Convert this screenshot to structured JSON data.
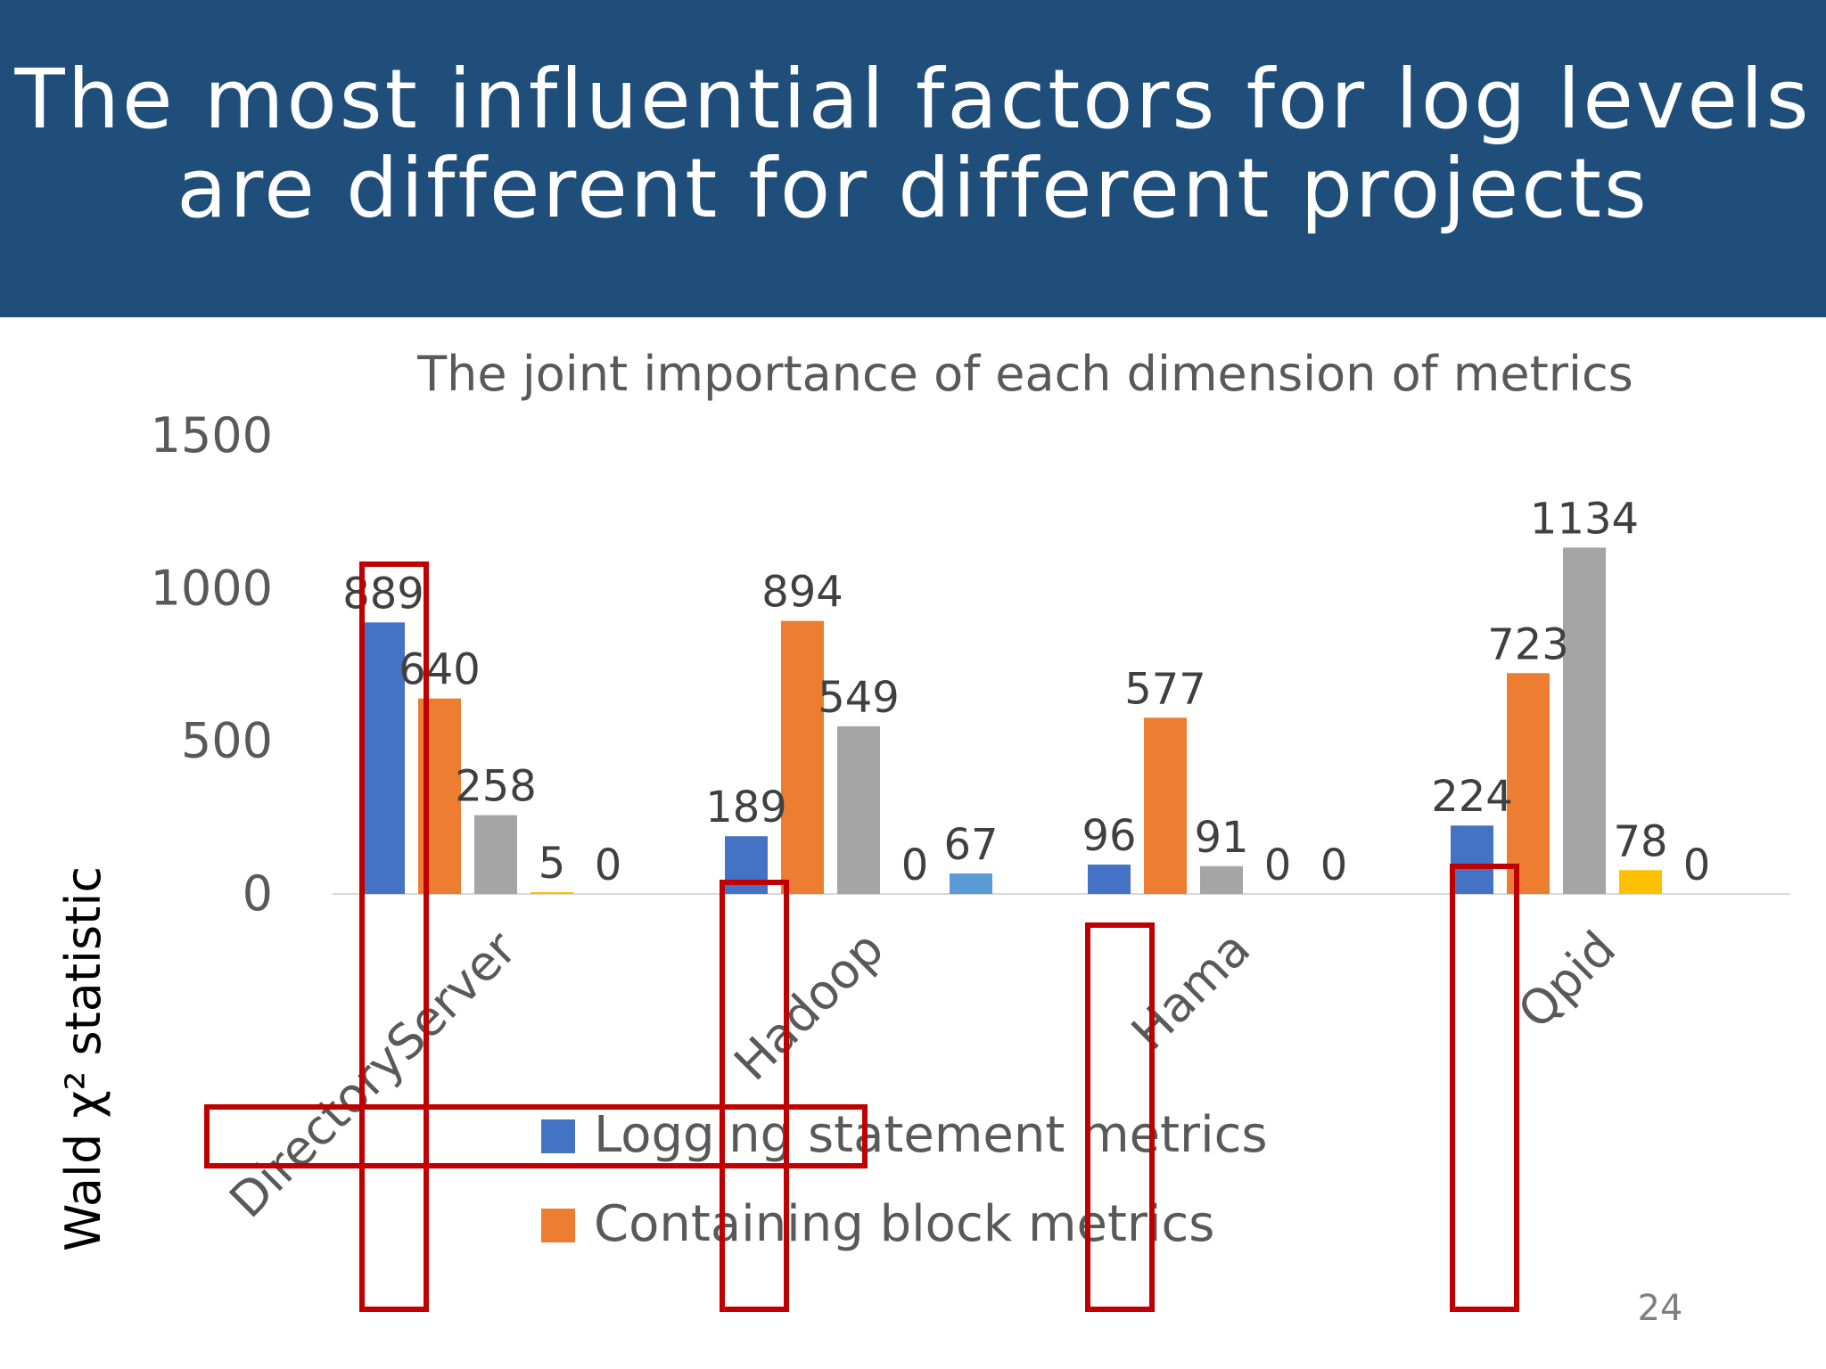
{
  "slide": {
    "title_line1": "The most influential factors for log levels",
    "title_line2": "are different for different projects",
    "page_number": "24"
  },
  "colors": {
    "header_bg": "#1f4e7b",
    "series": [
      "#4472c4",
      "#ed7d31",
      "#a5a5a5",
      "#ffc000",
      "#5b9bd5"
    ],
    "annotation": "#c00000"
  },
  "chart_data": {
    "type": "bar",
    "title": "The joint importance of each dimension of metrics",
    "xlabel": "",
    "ylabel": "Wald χ² statistic",
    "ylim": [
      0,
      1500
    ],
    "yticks": [
      0,
      500,
      1000,
      1500
    ],
    "grid": false,
    "legend_position": "bottom",
    "categories": [
      "DirectoryServer",
      "Hadoop",
      "Hama",
      "Qpid"
    ],
    "series": [
      {
        "name": "Logging statement metrics",
        "color": "#4472c4",
        "values": [
          889,
          189,
          96,
          224
        ]
      },
      {
        "name": "Containing block metrics",
        "color": "#ed7d31",
        "values": [
          640,
          894,
          577,
          723
        ]
      },
      {
        "color": "#a5a5a5",
        "values": [
          258,
          549,
          91,
          1134
        ]
      },
      {
        "color": "#ffc000",
        "values": [
          5,
          0,
          0,
          78
        ]
      },
      {
        "color": "#5b9bd5",
        "values": [
          0,
          67,
          0,
          0
        ]
      }
    ]
  }
}
